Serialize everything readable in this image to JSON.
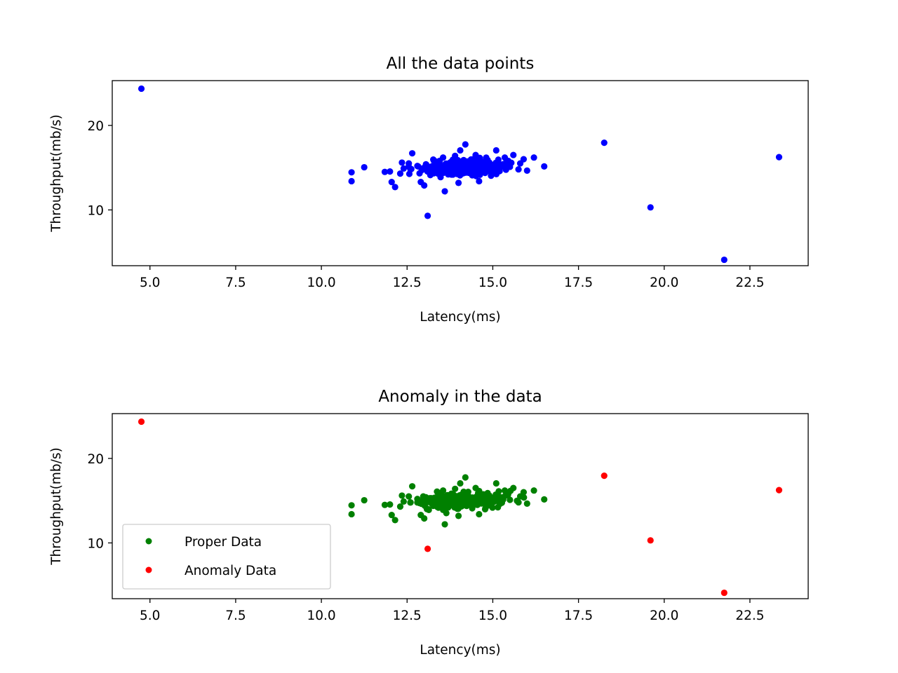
{
  "chart_data": [
    {
      "type": "scatter",
      "title": "All the data points",
      "xlabel": "Latency(ms)",
      "ylabel": "Throughput(mb/s)",
      "xlim": [
        3.9,
        24.2
      ],
      "ylim": [
        3.4,
        25.3
      ],
      "xticks": [
        5,
        7.5,
        10,
        12.5,
        15,
        17.5,
        20,
        22.5
      ],
      "xtick_labels": [
        "5.0",
        "7.5",
        "10.0",
        "12.5",
        "15.0",
        "17.5",
        "20.0",
        "22.5"
      ],
      "yticks": [
        10,
        20
      ],
      "ytick_labels": [
        "10",
        "20"
      ],
      "grid": false,
      "legend": null,
      "series": [
        {
          "name": "",
          "color": "#0000ff",
          "cluster_note": "dense cluster of ~300 normal points centred near (14.1, 15.0)",
          "points": [
            [
              4.75,
              24.35
            ],
            [
              18.25,
              17.95
            ],
            [
              23.35,
              16.25
            ],
            [
              19.6,
              10.3
            ],
            [
              21.75,
              4.1
            ],
            [
              13.1,
              9.3
            ],
            [
              10.88,
              14.45
            ],
            [
              10.88,
              13.4
            ],
            [
              11.25,
              15.05
            ],
            [
              11.85,
              14.5
            ],
            [
              12.0,
              14.55
            ],
            [
              12.05,
              13.3
            ],
            [
              12.15,
              12.7
            ],
            [
              12.3,
              14.3
            ],
            [
              12.35,
              15.6
            ],
            [
              12.55,
              15.5
            ],
            [
              12.65,
              16.7
            ],
            [
              12.9,
              13.3
            ],
            [
              13.0,
              12.9
            ],
            [
              13.05,
              15.4
            ],
            [
              13.3,
              14.6
            ],
            [
              13.45,
              15.8
            ],
            [
              13.55,
              16.2
            ],
            [
              13.6,
              12.2
            ],
            [
              13.7,
              14.2
            ],
            [
              13.8,
              15.2
            ],
            [
              13.9,
              16.4
            ],
            [
              14.0,
              13.2
            ],
            [
              14.05,
              17.05
            ],
            [
              14.2,
              17.75
            ],
            [
              14.3,
              15.5
            ],
            [
              14.4,
              14.1
            ],
            [
              14.5,
              16.5
            ],
            [
              14.6,
              13.4
            ],
            [
              14.7,
              14.9
            ],
            [
              14.85,
              15.9
            ],
            [
              15.0,
              15.3
            ],
            [
              15.1,
              17.05
            ],
            [
              15.2,
              14.6
            ],
            [
              15.35,
              16.2
            ],
            [
              15.5,
              15.1
            ],
            [
              15.6,
              16.5
            ],
            [
              15.75,
              14.8
            ],
            [
              15.9,
              16.0
            ],
            [
              16.0,
              14.65
            ],
            [
              16.2,
              16.2
            ],
            [
              16.5,
              15.15
            ],
            [
              13.2,
              15.0
            ],
            [
              13.5,
              14.9
            ],
            [
              13.75,
              15.0
            ],
            [
              14.1,
              15.1
            ],
            [
              14.25,
              14.7
            ],
            [
              14.45,
              15.3
            ],
            [
              14.65,
              15.0
            ],
            [
              14.9,
              15.6
            ],
            [
              15.3,
              15.4
            ],
            [
              12.6,
              14.8
            ],
            [
              12.8,
              15.2
            ],
            [
              13.4,
              14.3
            ],
            [
              13.95,
              14.6
            ],
            [
              14.15,
              15.9
            ],
            [
              14.55,
              14.5
            ],
            [
              14.75,
              15.7
            ],
            [
              15.45,
              15.8
            ],
            [
              15.8,
              15.5
            ],
            [
              12.4,
              14.9
            ]
          ]
        }
      ]
    },
    {
      "type": "scatter",
      "title": "Anomaly in the data",
      "xlabel": "Latency(ms)",
      "ylabel": "Throughput(mb/s)",
      "xlim": [
        3.9,
        24.2
      ],
      "ylim": [
        3.4,
        25.3
      ],
      "xticks": [
        5,
        7.5,
        10,
        12.5,
        15,
        17.5,
        20,
        22.5
      ],
      "xtick_labels": [
        "5.0",
        "7.5",
        "10.0",
        "12.5",
        "15.0",
        "17.5",
        "20.0",
        "22.5"
      ],
      "yticks": [
        10,
        20
      ],
      "ytick_labels": [
        "10",
        "20"
      ],
      "grid": false,
      "legend": "lower-left",
      "series": [
        {
          "name": "Proper Data",
          "color": "#008000",
          "cluster_note": "dense cluster of ~300 normal points centred near (14.1, 15.0)",
          "points": [
            [
              10.88,
              14.45
            ],
            [
              10.88,
              13.4
            ],
            [
              11.25,
              15.05
            ],
            [
              11.85,
              14.5
            ],
            [
              12.0,
              14.55
            ],
            [
              12.05,
              13.3
            ],
            [
              12.15,
              12.7
            ],
            [
              12.3,
              14.3
            ],
            [
              12.35,
              15.6
            ],
            [
              12.55,
              15.5
            ],
            [
              12.65,
              16.7
            ],
            [
              12.9,
              13.3
            ],
            [
              13.0,
              12.9
            ],
            [
              13.05,
              15.4
            ],
            [
              13.3,
              14.6
            ],
            [
              13.45,
              15.8
            ],
            [
              13.55,
              16.2
            ],
            [
              13.6,
              12.2
            ],
            [
              13.7,
              14.2
            ],
            [
              13.8,
              15.2
            ],
            [
              13.9,
              16.4
            ],
            [
              14.0,
              13.2
            ],
            [
              14.05,
              17.05
            ],
            [
              14.2,
              17.75
            ],
            [
              14.3,
              15.5
            ],
            [
              14.4,
              14.1
            ],
            [
              14.5,
              16.5
            ],
            [
              14.6,
              13.4
            ],
            [
              14.7,
              14.9
            ],
            [
              14.85,
              15.9
            ],
            [
              15.0,
              15.3
            ],
            [
              15.1,
              17.05
            ],
            [
              15.2,
              14.6
            ],
            [
              15.35,
              16.2
            ],
            [
              15.5,
              15.1
            ],
            [
              15.6,
              16.5
            ],
            [
              15.75,
              14.8
            ],
            [
              15.9,
              16.0
            ],
            [
              16.0,
              14.65
            ],
            [
              16.2,
              16.2
            ],
            [
              16.5,
              15.15
            ],
            [
              13.2,
              15.0
            ],
            [
              13.5,
              14.9
            ],
            [
              13.75,
              15.0
            ],
            [
              14.1,
              15.1
            ],
            [
              14.25,
              14.7
            ],
            [
              14.45,
              15.3
            ],
            [
              14.65,
              15.0
            ],
            [
              14.9,
              15.6
            ],
            [
              15.3,
              15.4
            ],
            [
              12.6,
              14.8
            ],
            [
              12.8,
              15.2
            ],
            [
              13.4,
              14.3
            ],
            [
              13.95,
              14.6
            ],
            [
              14.15,
              15.9
            ],
            [
              14.55,
              14.5
            ],
            [
              14.75,
              15.7
            ],
            [
              15.45,
              15.8
            ],
            [
              15.8,
              15.5
            ],
            [
              12.4,
              14.9
            ]
          ]
        },
        {
          "name": "Anomaly Data",
          "color": "#ff0000",
          "points": [
            [
              4.75,
              24.35
            ],
            [
              18.25,
              17.95
            ],
            [
              23.35,
              16.25
            ],
            [
              19.6,
              10.3
            ],
            [
              21.75,
              4.1
            ],
            [
              13.1,
              9.3
            ]
          ]
        }
      ]
    }
  ]
}
